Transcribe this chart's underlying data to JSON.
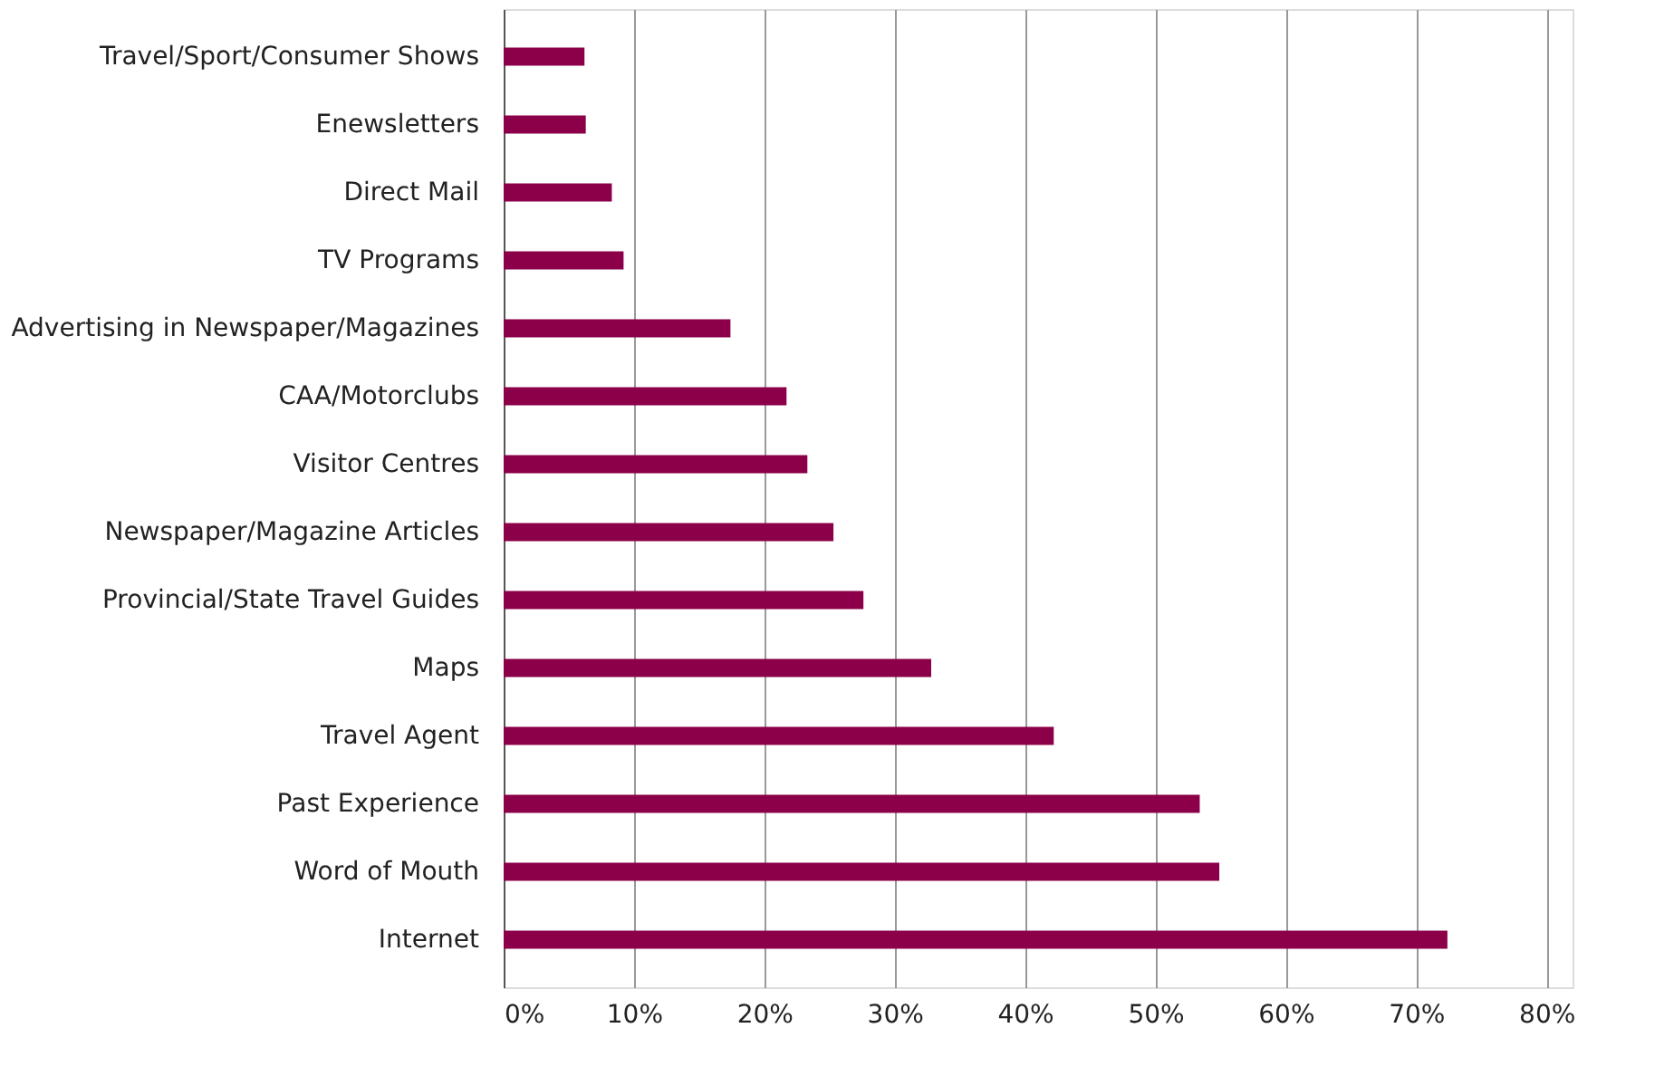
{
  "chart_data": {
    "type": "bar",
    "orientation": "horizontal",
    "categories": [
      "Travel/Sport/Consumer Shows",
      "Enewsletters",
      "Direct Mail",
      "TV Programs",
      "Advertising in Newspaper/Magazines",
      "CAA/Motorclubs",
      "Visitor Centres",
      "Newspaper/Magazine Articles",
      "Provincial/State Travel Guides",
      "Maps",
      "Travel Agent",
      "Past Experience",
      "Word of Mouth",
      "Internet"
    ],
    "values": [
      6.2,
      6.3,
      8.3,
      9.2,
      17.4,
      21.7,
      23.3,
      25.3,
      27.6,
      32.8,
      42.2,
      53.4,
      54.9,
      72.4
    ],
    "color": "#8b0048",
    "xlim": [
      0,
      82
    ],
    "xticks": [
      {
        "value": 0,
        "label": "0%"
      },
      {
        "value": 10,
        "label": "10%"
      },
      {
        "value": 20,
        "label": "20%"
      },
      {
        "value": 30,
        "label": "30%"
      },
      {
        "value": 40,
        "label": "40%"
      },
      {
        "value": 50,
        "label": "50%"
      },
      {
        "value": 60,
        "label": "60%"
      },
      {
        "value": 70,
        "label": "70%"
      },
      {
        "value": 80,
        "label": "80%"
      }
    ],
    "grid": "x"
  }
}
